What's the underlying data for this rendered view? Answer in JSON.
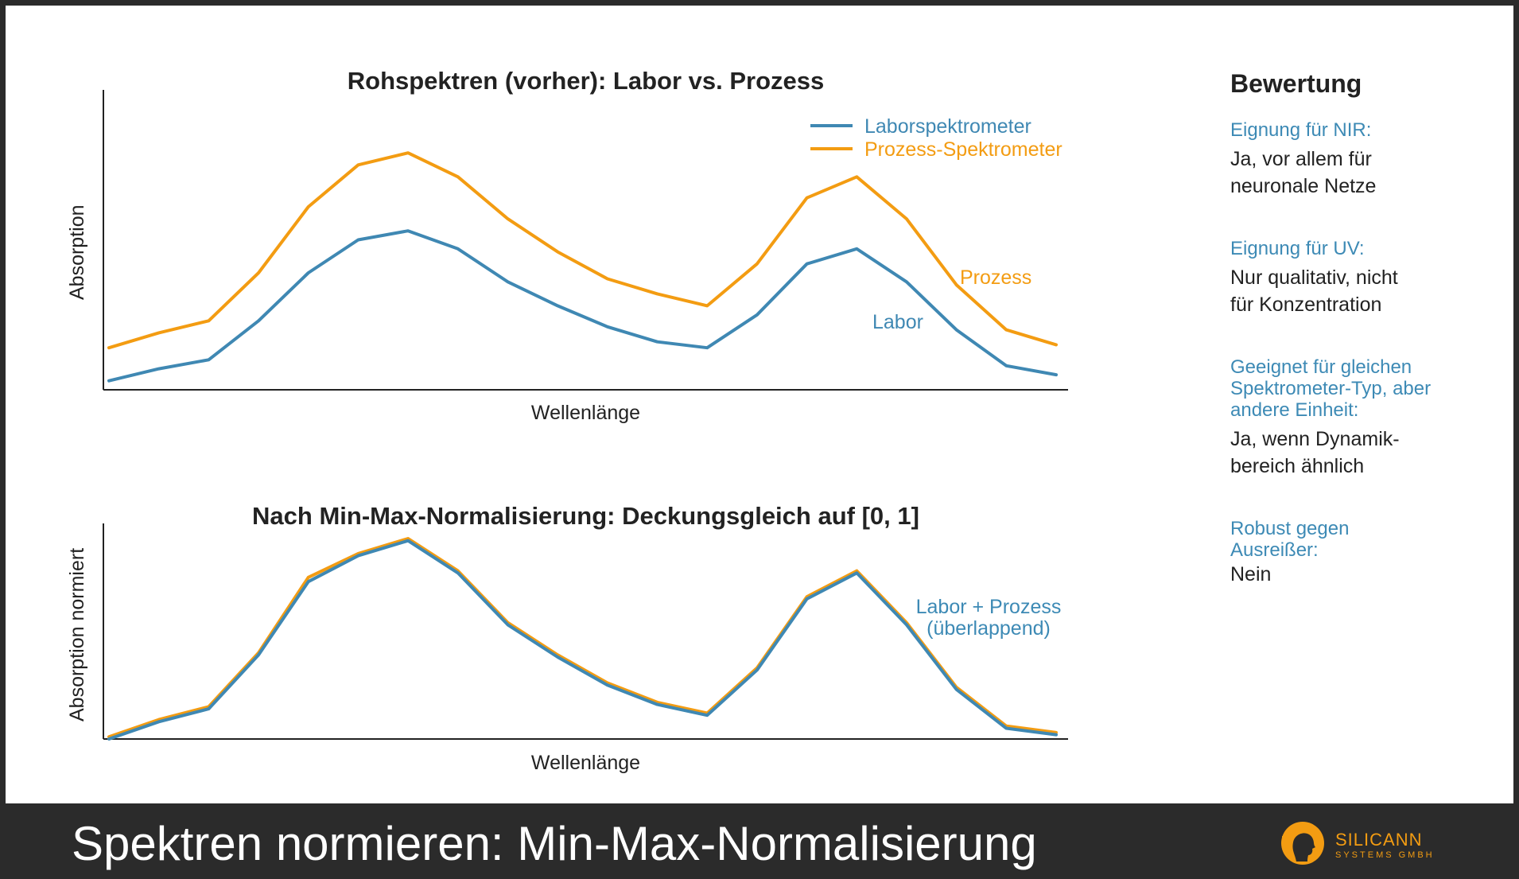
{
  "colors": {
    "labor": "#3f88b3",
    "prozess": "#f39c12",
    "axis": "#222222",
    "label_blue": "#3d8ab5"
  },
  "chart_data": [
    {
      "type": "line",
      "title": "Rohspektren (vorher): Labor vs. Prozess",
      "xlabel": "Wellenlänge",
      "ylabel": "Absorption",
      "x": [
        0,
        1,
        2,
        3,
        4,
        5,
        6,
        7,
        8,
        9,
        10,
        11,
        12,
        13,
        14,
        15,
        16,
        17,
        18,
        19
      ],
      "ylim": [
        0,
        1
      ],
      "series": [
        {
          "name": "Laborspektrometer",
          "values": [
            0.03,
            0.07,
            0.1,
            0.23,
            0.39,
            0.5,
            0.53,
            0.47,
            0.36,
            0.28,
            0.21,
            0.16,
            0.14,
            0.25,
            0.42,
            0.47,
            0.36,
            0.2,
            0.08,
            0.05
          ]
        },
        {
          "name": "Prozess-Spektrometer",
          "values": [
            0.14,
            0.19,
            0.23,
            0.39,
            0.61,
            0.75,
            0.79,
            0.71,
            0.57,
            0.46,
            0.37,
            0.32,
            0.28,
            0.42,
            0.64,
            0.71,
            0.57,
            0.35,
            0.2,
            0.15
          ]
        }
      ],
      "legend": {
        "position": "top-right",
        "entries": [
          "Laborspektrometer",
          "Prozess-Spektrometer"
        ]
      },
      "annotations": [
        {
          "text": "Prozess",
          "series": "Prozess-Spektrometer"
        },
        {
          "text": "Labor",
          "series": "Laborspektrometer"
        }
      ],
      "grid": false
    },
    {
      "type": "line",
      "title": "Nach Min-Max-Normalisierung: Deckungsgleich auf [0, 1]",
      "xlabel": "Wellenlänge",
      "ylabel": "Absorption normiert",
      "x": [
        0,
        1,
        2,
        3,
        4,
        5,
        6,
        7,
        8,
        9,
        10,
        11,
        12,
        13,
        14,
        15,
        16,
        17,
        18,
        19
      ],
      "ylim": [
        0,
        1
      ],
      "series": [
        {
          "name": "Labor",
          "values": [
            0.0,
            0.08,
            0.14,
            0.39,
            0.73,
            0.85,
            0.92,
            0.77,
            0.53,
            0.38,
            0.25,
            0.16,
            0.11,
            0.32,
            0.65,
            0.77,
            0.53,
            0.23,
            0.05,
            0.02
          ]
        },
        {
          "name": "Prozess",
          "values": [
            0.01,
            0.09,
            0.15,
            0.4,
            0.75,
            0.86,
            0.93,
            0.78,
            0.54,
            0.39,
            0.26,
            0.17,
            0.12,
            0.33,
            0.66,
            0.78,
            0.54,
            0.24,
            0.06,
            0.03
          ]
        }
      ],
      "annotations": [
        {
          "text": "Labor + Prozess",
          "series": "Labor"
        },
        {
          "text": "(überlappend)",
          "series": "Labor"
        }
      ],
      "grid": false
    }
  ],
  "assessment": {
    "title": "Bewertung",
    "items": [
      {
        "label": "Eignung für NIR:",
        "value": "Ja, vor allem für neuronale Netze"
      },
      {
        "label": "Eignung für UV:",
        "value": "Nur qualitativ, nicht für Konzentration"
      },
      {
        "label": "Geeignet für gleichen Spektrometer-Typ, aber andere Einheit:",
        "value": "Ja, wenn Dynamik-bereich ähnlich"
      },
      {
        "label": "Robust gegen Ausreißer:",
        "value": "Nein"
      }
    ]
  },
  "footer": {
    "title": "Spektren normieren: Min-Max-Normalisierung",
    "logo_text": "SILICANN",
    "logo_sub": "SYSTEMS GMBH"
  }
}
